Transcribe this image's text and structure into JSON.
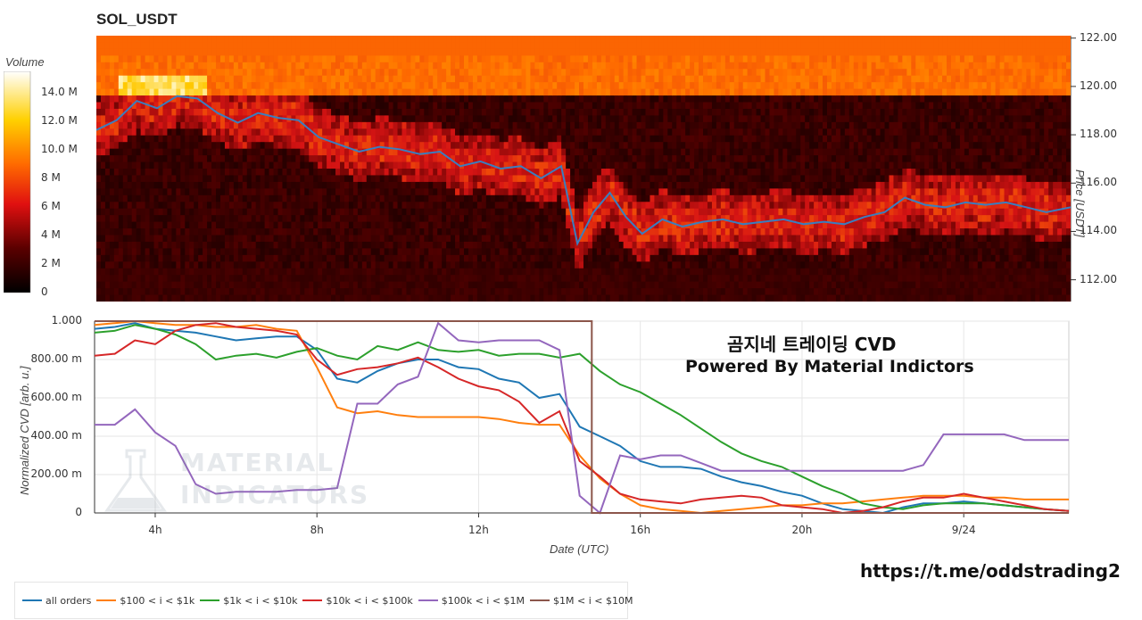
{
  "title": "SOL_USDT",
  "colorbar": {
    "title": "Volume",
    "labels": [
      "14.0 M",
      "12.0 M",
      "10.0 M",
      "8 M",
      "6 M",
      "4 M",
      "2 M",
      "0"
    ],
    "values": [
      14,
      12,
      10,
      8,
      6,
      4,
      2,
      0
    ],
    "max": 15.5
  },
  "heatmap_axis": {
    "label": "Price [USDT]",
    "ticks": [
      "122.00",
      "120.00",
      "118.00",
      "116.00",
      "114.00",
      "112.00"
    ],
    "tick_values": [
      122,
      120,
      118,
      116,
      114,
      112
    ],
    "ylim": [
      111.1,
      122.1
    ]
  },
  "cvd_axis": {
    "ylabel": "Normalized CVD [arb. u.]",
    "yticks": [
      "1.000",
      "800.00 m",
      "600.00 m",
      "400.00 m",
      "200.00 m",
      "0"
    ],
    "ytick_values": [
      1.0,
      0.8,
      0.6,
      0.4,
      0.2,
      0
    ],
    "xticks": [
      "4h",
      "8h",
      "12h",
      "16h",
      "20h",
      "9/24"
    ],
    "xtick_values": [
      4,
      8,
      12,
      16,
      20,
      24
    ],
    "xlabel": "Date (UTC)",
    "xlim": [
      2.5,
      26.6
    ]
  },
  "annotations": {
    "line1": "곰지네 트레이딩 CVD",
    "line2": "Powered By Material Indictors",
    "link": "https://t.me/oddstrading2"
  },
  "watermark": {
    "line1": "MATERIAL",
    "line2": "INDICATORS"
  },
  "legend": [
    {
      "label": "all orders",
      "color": "#1f77b4"
    },
    {
      "label": "$100 < i < $1k",
      "color": "#ff7f0e"
    },
    {
      "label": "$1k < i < $10k",
      "color": "#2ca02c"
    },
    {
      "label": "$10k < i < $100k",
      "color": "#d62728"
    },
    {
      "label": "$100k < i < $1M",
      "color": "#9467bd"
    },
    {
      "label": "$1M < i < $10M",
      "color": "#8c564b"
    }
  ],
  "chart_data": [
    {
      "type": "heatmap",
      "title": "SOL_USDT",
      "ylabel": "Price [USDT]",
      "ylim": [
        111.1,
        122.1
      ],
      "colorbar_label": "Volume",
      "price_line": {
        "color": "#3a7ebf",
        "x": [
          2.5,
          3.0,
          3.5,
          4.0,
          4.5,
          5.0,
          5.5,
          6.0,
          6.5,
          7.0,
          7.5,
          8.0,
          8.5,
          9.0,
          9.5,
          10.0,
          10.5,
          11.0,
          11.5,
          12.0,
          12.5,
          13.0,
          13.5,
          14.0,
          14.2,
          14.4,
          14.8,
          15.2,
          15.6,
          16.0,
          16.5,
          17.0,
          17.5,
          18.0,
          18.5,
          19.0,
          19.5,
          20.0,
          20.5,
          21.0,
          21.5,
          22.0,
          22.5,
          23.0,
          23.5,
          24.0,
          24.5,
          25.0,
          25.5,
          26.0,
          26.6
        ],
        "y": [
          118.2,
          118.6,
          119.4,
          119.1,
          119.6,
          119.5,
          118.9,
          118.5,
          118.9,
          118.7,
          118.6,
          117.9,
          117.6,
          117.3,
          117.5,
          117.4,
          117.2,
          117.3,
          116.7,
          116.9,
          116.6,
          116.7,
          116.2,
          116.7,
          115.1,
          113.5,
          114.8,
          115.6,
          114.6,
          113.9,
          114.5,
          114.2,
          114.4,
          114.5,
          114.3,
          114.4,
          114.5,
          114.3,
          114.4,
          114.3,
          114.6,
          114.8,
          115.4,
          115.1,
          115.0,
          115.2,
          115.1,
          115.2,
          115.0,
          114.8,
          115.0
        ]
      }
    },
    {
      "type": "line",
      "xlabel": "Date (UTC)",
      "ylabel": "Normalized CVD [arb. u.]",
      "xlim": [
        2.5,
        26.6
      ],
      "ylim": [
        0,
        1.0
      ],
      "x": [
        2.5,
        3.0,
        3.5,
        4.0,
        4.5,
        5.0,
        5.5,
        6.0,
        6.5,
        7.0,
        7.5,
        8.0,
        8.5,
        9.0,
        9.5,
        10.0,
        10.5,
        11.0,
        11.5,
        12.0,
        12.5,
        13.0,
        13.5,
        14.0,
        14.5,
        15.0,
        15.5,
        16.0,
        16.5,
        17.0,
        17.5,
        18.0,
        18.5,
        19.0,
        19.5,
        20.0,
        20.5,
        21.0,
        21.5,
        22.0,
        22.5,
        23.0,
        23.5,
        24.0,
        24.5,
        25.0,
        25.5,
        26.0,
        26.6
      ],
      "series": [
        {
          "name": "all orders",
          "color": "#1f77b4",
          "values": [
            0.96,
            0.97,
            0.99,
            0.96,
            0.95,
            0.94,
            0.92,
            0.9,
            0.91,
            0.92,
            0.92,
            0.85,
            0.7,
            0.68,
            0.74,
            0.78,
            0.8,
            0.8,
            0.76,
            0.75,
            0.7,
            0.68,
            0.6,
            0.62,
            0.45,
            0.4,
            0.35,
            0.27,
            0.24,
            0.24,
            0.23,
            0.19,
            0.16,
            0.14,
            0.11,
            0.09,
            0.05,
            0.02,
            0.01,
            0.0,
            0.03,
            0.05,
            0.05,
            0.06,
            0.05,
            0.04,
            0.03,
            0.02,
            0.01
          ]
        },
        {
          "name": "$100 < i < $1k",
          "color": "#ff7f0e",
          "values": [
            0.98,
            0.99,
            1.0,
            0.99,
            0.98,
            0.98,
            0.97,
            0.97,
            0.98,
            0.96,
            0.95,
            0.76,
            0.55,
            0.52,
            0.53,
            0.51,
            0.5,
            0.5,
            0.5,
            0.5,
            0.49,
            0.47,
            0.46,
            0.46,
            0.3,
            0.18,
            0.1,
            0.04,
            0.02,
            0.01,
            0.0,
            0.01,
            0.02,
            0.03,
            0.04,
            0.04,
            0.05,
            0.05,
            0.06,
            0.07,
            0.08,
            0.09,
            0.09,
            0.09,
            0.08,
            0.08,
            0.07,
            0.07,
            0.07
          ]
        },
        {
          "name": "$1k < i < $10k",
          "color": "#2ca02c",
          "values": [
            0.94,
            0.95,
            0.98,
            0.96,
            0.93,
            0.88,
            0.8,
            0.82,
            0.83,
            0.81,
            0.84,
            0.86,
            0.82,
            0.8,
            0.87,
            0.85,
            0.89,
            0.85,
            0.84,
            0.85,
            0.82,
            0.83,
            0.83,
            0.81,
            0.83,
            0.74,
            0.67,
            0.63,
            0.57,
            0.51,
            0.44,
            0.37,
            0.31,
            0.27,
            0.24,
            0.19,
            0.14,
            0.1,
            0.05,
            0.03,
            0.02,
            0.04,
            0.05,
            0.05,
            0.05,
            0.04,
            0.03,
            0.02,
            0.01
          ]
        },
        {
          "name": "$10k < i < $100k",
          "color": "#d62728",
          "values": [
            0.82,
            0.83,
            0.9,
            0.88,
            0.95,
            0.98,
            0.99,
            0.97,
            0.96,
            0.95,
            0.93,
            0.8,
            0.72,
            0.75,
            0.76,
            0.78,
            0.81,
            0.76,
            0.7,
            0.66,
            0.64,
            0.58,
            0.47,
            0.53,
            0.27,
            0.19,
            0.1,
            0.07,
            0.06,
            0.05,
            0.07,
            0.08,
            0.09,
            0.08,
            0.04,
            0.03,
            0.02,
            0.0,
            0.01,
            0.03,
            0.06,
            0.08,
            0.08,
            0.1,
            0.08,
            0.06,
            0.04,
            0.02,
            0.01
          ]
        },
        {
          "name": "$100k < i < $1M",
          "color": "#9467bd",
          "values": [
            0.46,
            0.46,
            0.54,
            0.42,
            0.35,
            0.15,
            0.1,
            0.11,
            0.11,
            0.11,
            0.12,
            0.12,
            0.13,
            0.57,
            0.57,
            0.67,
            0.71,
            0.99,
            0.9,
            0.89,
            0.9,
            0.9,
            0.9,
            0.85,
            0.09,
            0.0,
            0.3,
            0.28,
            0.3,
            0.3,
            0.26,
            0.22,
            0.22,
            0.22,
            0.22,
            0.22,
            0.22,
            0.22,
            0.22,
            0.22,
            0.22,
            0.25,
            0.41,
            0.41,
            0.41,
            0.41,
            0.38,
            0.38,
            0.38
          ]
        },
        {
          "name": "$1M < i < $10M",
          "color": "#8c564b",
          "values": [
            1.0,
            1.0,
            1.0,
            1.0,
            1.0,
            1.0,
            1.0,
            1.0,
            1.0,
            1.0,
            1.0,
            1.0,
            1.0,
            1.0,
            1.0,
            1.0,
            1.0,
            1.0,
            1.0,
            1.0,
            1.0,
            1.0,
            1.0,
            1.0,
            1.0,
            0.0,
            0.0,
            0.0,
            0.0,
            0.0,
            0.0,
            0.0,
            0.0,
            0.0,
            0.0,
            0.0,
            0.0,
            0.0,
            0.0,
            0.0,
            0.0,
            0.0,
            0.0,
            0.0,
            0.0,
            0.0,
            0.0,
            0.0,
            0.0
          ]
        }
      ]
    }
  ]
}
